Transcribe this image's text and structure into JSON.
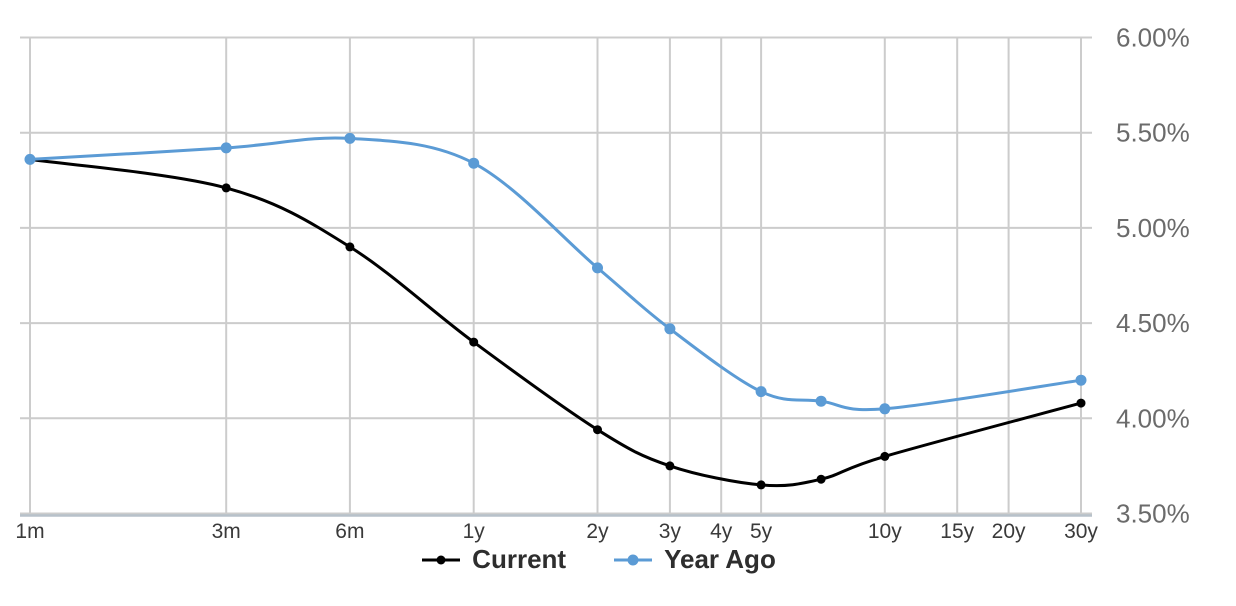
{
  "chart_data": {
    "type": "line",
    "title": "",
    "xlabel": "",
    "ylabel": "",
    "x_scale": "log",
    "x_unit": "maturity",
    "ylim": [
      3.5,
      6.0
    ],
    "grid": true,
    "legend_position": "bottom",
    "x_ticks": [
      {
        "months": 1,
        "label": "1m"
      },
      {
        "months": 3,
        "label": "3m"
      },
      {
        "months": 6,
        "label": "6m"
      },
      {
        "months": 12,
        "label": "1y"
      },
      {
        "months": 24,
        "label": "2y"
      },
      {
        "months": 36,
        "label": "3y"
      },
      {
        "months": 48,
        "label": "4y"
      },
      {
        "months": 60,
        "label": "5y"
      },
      {
        "months": 120,
        "label": "10y"
      },
      {
        "months": 180,
        "label": "15y"
      },
      {
        "months": 240,
        "label": "20y"
      },
      {
        "months": 360,
        "label": "30y"
      }
    ],
    "y_ticks": [
      {
        "value": 6.0,
        "label": "6.00%"
      },
      {
        "value": 5.5,
        "label": "5.50%"
      },
      {
        "value": 5.0,
        "label": "5.00%"
      },
      {
        "value": 4.5,
        "label": "4.50%"
      },
      {
        "value": 4.0,
        "label": "4.00%"
      },
      {
        "value": 3.5,
        "label": "3.50%"
      }
    ],
    "point_months": [
      1,
      3,
      6,
      12,
      24,
      36,
      60,
      84,
      120,
      360
    ],
    "point_labels": [
      "1m",
      "3m",
      "6m",
      "1y",
      "2y",
      "3y",
      "5y",
      "7y",
      "10y",
      "30y"
    ],
    "series": [
      {
        "name": "Current",
        "color": "#000000",
        "values": [
          5.36,
          5.21,
          4.9,
          4.4,
          3.94,
          3.75,
          3.65,
          3.68,
          3.8,
          4.08
        ]
      },
      {
        "name": "Year Ago",
        "color": "#5B9BD5",
        "values": [
          5.36,
          5.42,
          5.47,
          5.34,
          4.79,
          4.47,
          4.14,
          4.09,
          4.05,
          4.2
        ]
      }
    ]
  },
  "legend": {
    "current_label": "Current",
    "year_ago_label": "Year Ago"
  },
  "colors": {
    "current_series": "#000000",
    "year_ago_series": "#5B9BD5",
    "gridline": "#cccccc",
    "axis_line": "#b7c1ca",
    "x_label_text": "#3a3a3a",
    "y_label_text": "#6b6b6b",
    "legend_text": "#2e2e2e",
    "background": "#ffffff"
  }
}
